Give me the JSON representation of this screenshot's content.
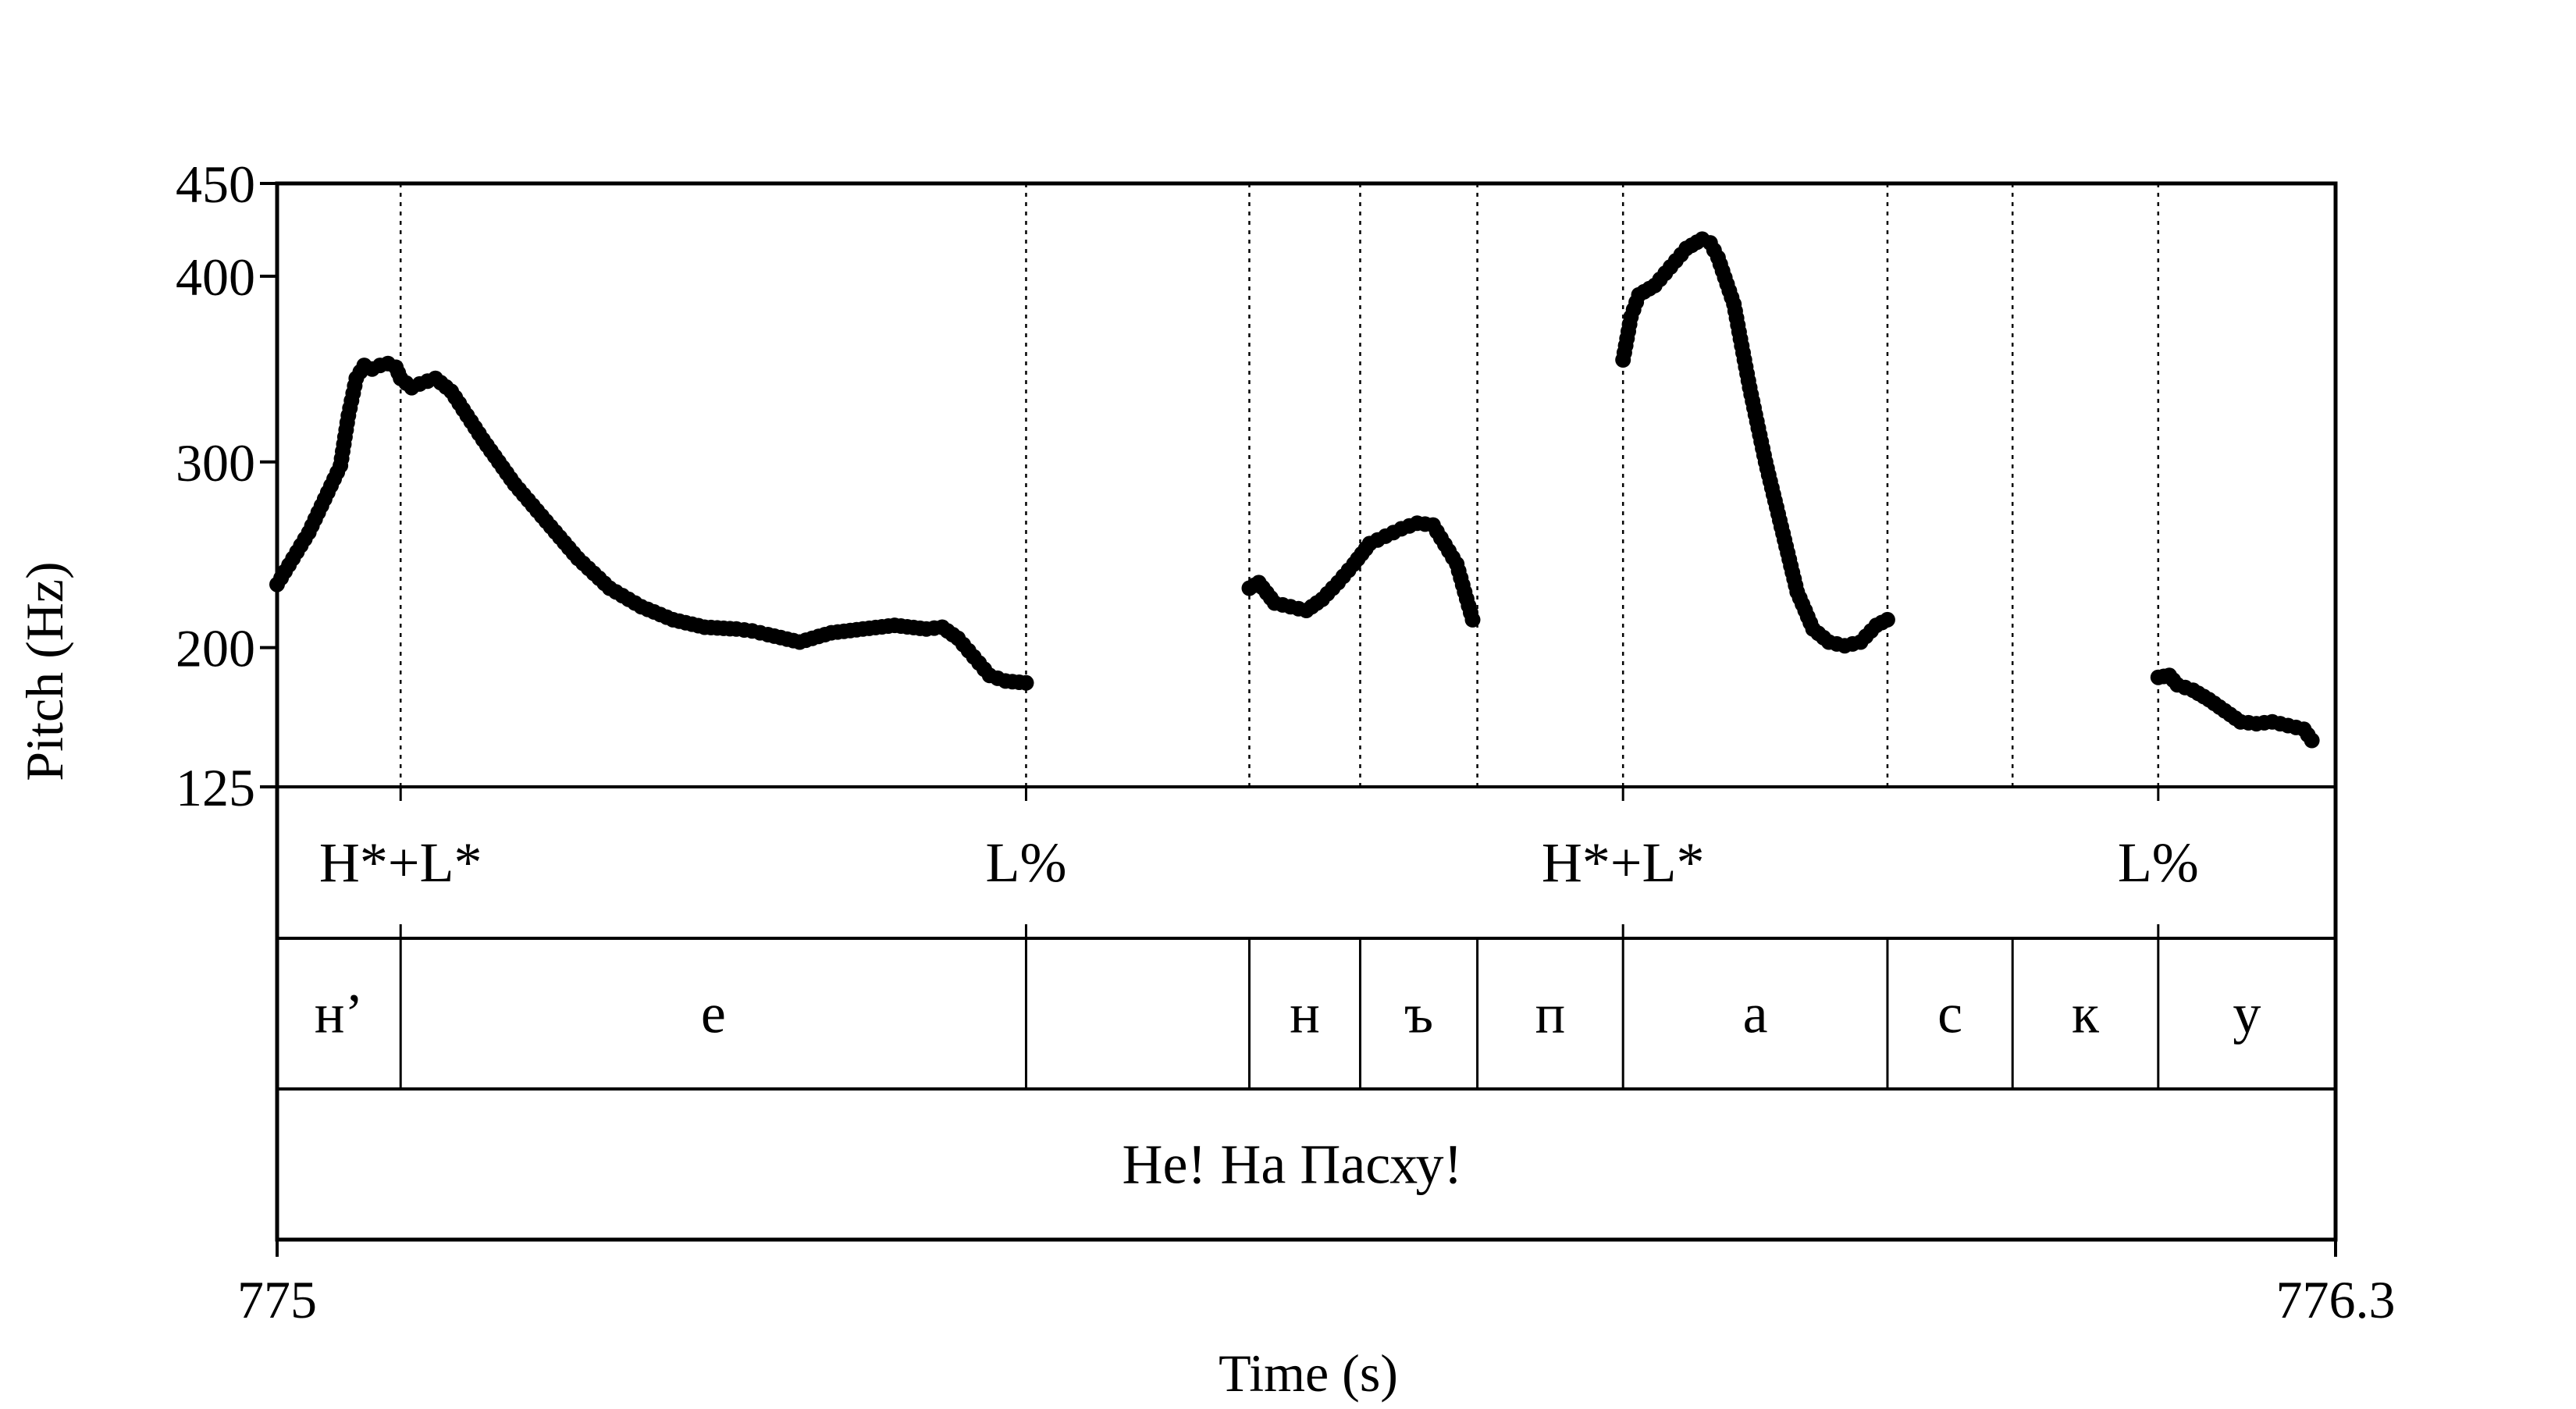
{
  "chart_data": {
    "type": "scatter",
    "title": "",
    "xlabel": "Time (s)",
    "ylabel": "Pitch (Hz)",
    "xlim": [
      775,
      776.3
    ],
    "ylim": [
      125,
      450
    ],
    "x_tick_labels": [
      "775",
      "776.3"
    ],
    "y_ticks": [
      125,
      200,
      300,
      400,
      450
    ],
    "y_tick_labels": [
      "125",
      "200",
      "300",
      "400",
      "450"
    ],
    "boundaries": [
      775.078,
      775.473,
      775.614,
      775.684,
      775.758,
      775.85,
      776.017,
      776.096,
      776.188
    ],
    "tones": [
      {
        "label": "H*+L*",
        "time": 775.078
      },
      {
        "label": "L%",
        "time": 775.473
      },
      {
        "label": "H*+L*",
        "time": 775.85
      },
      {
        "label": "L%",
        "time": 776.188
      }
    ],
    "segments": [
      {
        "label": "н’",
        "start": 775.0,
        "end": 775.078
      },
      {
        "label": "е",
        "start": 775.078,
        "end": 775.473
      },
      {
        "label": "",
        "start": 775.473,
        "end": 775.614
      },
      {
        "label": "н",
        "start": 775.614,
        "end": 775.684
      },
      {
        "label": "ъ",
        "start": 775.684,
        "end": 775.758
      },
      {
        "label": "п",
        "start": 775.758,
        "end": 775.85
      },
      {
        "label": "а",
        "start": 775.85,
        "end": 776.017
      },
      {
        "label": "с",
        "start": 776.017,
        "end": 776.096
      },
      {
        "label": "к",
        "start": 776.096,
        "end": 776.188
      },
      {
        "label": "у",
        "start": 776.188,
        "end": 776.3
      }
    ],
    "utterance": "Не! На Пасху!",
    "pitch_contours": [
      {
        "x": [
          775.0,
          775.01,
          775.02,
          775.03,
          775.04,
          775.045,
          775.05,
          775.055,
          775.06,
          775.065,
          775.07,
          775.075,
          775.078,
          775.085,
          775.09,
          775.1,
          775.11,
          775.12,
          775.13,
          775.14,
          775.15,
          775.17,
          775.19,
          775.21,
          775.23,
          775.25,
          775.27,
          775.29,
          775.3,
          775.31,
          775.33,
          775.35,
          775.37,
          775.39,
          775.41,
          775.42,
          775.43,
          775.44,
          775.45,
          775.46,
          775.473
        ],
        "y": [
          234,
          248,
          262,
          280,
          298,
          325,
          345,
          352,
          350,
          352,
          353,
          351,
          345,
          340,
          342,
          345,
          338,
          325,
          312,
          300,
          288,
          268,
          248,
          232,
          222,
          215,
          211,
          210,
          209,
          207,
          203,
          208,
          210,
          212,
          210,
          211,
          205,
          195,
          185,
          182,
          181
        ]
      },
      {
        "x": [
          775.614,
          775.62,
          775.63,
          775.64,
          775.65,
          775.66,
          775.67,
          775.68,
          775.69,
          775.7,
          775.71,
          775.72,
          775.73,
          775.74,
          775.745,
          775.75,
          775.755
        ],
        "y": [
          232,
          235,
          224,
          222,
          220,
          226,
          235,
          245,
          256,
          260,
          264,
          267,
          266,
          252,
          245,
          230,
          215
        ]
      },
      {
        "x": [
          775.85,
          775.855,
          775.86,
          775.87,
          775.88,
          775.89,
          775.9,
          775.905,
          775.91,
          775.92,
          775.93,
          775.94,
          775.95,
          775.96,
          775.97,
          775.98,
          775.99,
          776.0,
          776.01,
          776.017
        ],
        "y": [
          355,
          378,
          390,
          395,
          405,
          415,
          420,
          418,
          410,
          385,
          340,
          300,
          265,
          230,
          210,
          203,
          201,
          203,
          212,
          215
        ]
      },
      {
        "x": [
          776.188,
          776.195,
          776.2,
          776.21,
          776.22,
          776.23,
          776.24,
          776.25,
          776.26,
          776.27,
          776.28,
          776.285
        ],
        "y": [
          184,
          185,
          180,
          177,
          172,
          166,
          160,
          159,
          160,
          158,
          156,
          150
        ]
      }
    ],
    "grid": false,
    "legend": "none"
  }
}
